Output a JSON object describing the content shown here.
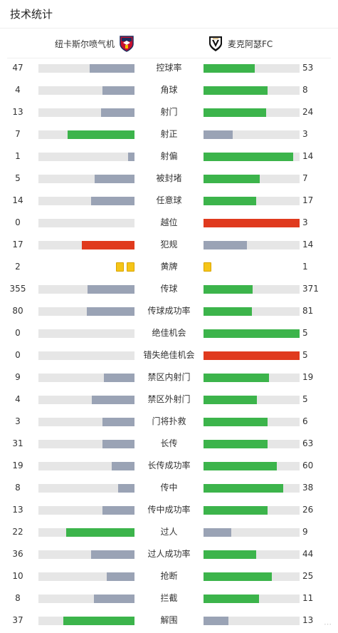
{
  "header": {
    "title": "技术统计"
  },
  "teams": {
    "home": {
      "name": "纽卡斯尔喷气机",
      "logo_icon": "newcastle-jets-crest-icon"
    },
    "away": {
      "name": "麦克阿瑟FC",
      "logo_icon": "macarthur-fc-crest-icon"
    }
  },
  "colors": {
    "leader": "#3cb44b",
    "neutral": "#9aa3b5",
    "foul_leader": "#e03a1e",
    "track": "#e6e6e6",
    "yellow_card": "#f5c518"
  },
  "stats": [
    {
      "label": "控球率",
      "home": "47",
      "away": "53"
    },
    {
      "label": "角球",
      "home": "4",
      "away": "8"
    },
    {
      "label": "射门",
      "home": "13",
      "away": "24"
    },
    {
      "label": "射正",
      "home": "7",
      "away": "3"
    },
    {
      "label": "射偏",
      "home": "1",
      "away": "14"
    },
    {
      "label": "被封堵",
      "home": "5",
      "away": "7"
    },
    {
      "label": "任意球",
      "home": "14",
      "away": "17"
    },
    {
      "label": "越位",
      "home": "0",
      "away": "3",
      "red": true
    },
    {
      "label": "犯规",
      "home": "17",
      "away": "14",
      "red": true
    },
    {
      "label": "黄牌",
      "home": "2",
      "away": "1",
      "cards": true
    },
    {
      "label": "传球",
      "home": "355",
      "away": "371"
    },
    {
      "label": "传球成功率",
      "home": "80",
      "away": "81"
    },
    {
      "label": "绝佳机会",
      "home": "0",
      "away": "5"
    },
    {
      "label": "错失绝佳机会",
      "home": "0",
      "away": "5",
      "red": true
    },
    {
      "label": "禁区内射门",
      "home": "9",
      "away": "19"
    },
    {
      "label": "禁区外射门",
      "home": "4",
      "away": "5"
    },
    {
      "label": "门将扑救",
      "home": "3",
      "away": "6"
    },
    {
      "label": "长传",
      "home": "31",
      "away": "63"
    },
    {
      "label": "长传成功率",
      "home": "19",
      "away": "60"
    },
    {
      "label": "传中",
      "home": "8",
      "away": "38"
    },
    {
      "label": "传中成功率",
      "home": "13",
      "away": "26"
    },
    {
      "label": "过人",
      "home": "22",
      "away": "9"
    },
    {
      "label": "过人成功率",
      "home": "36",
      "away": "44"
    },
    {
      "label": "抢断",
      "home": "10",
      "away": "25"
    },
    {
      "label": "拦截",
      "home": "8",
      "away": "11"
    },
    {
      "label": "解围",
      "home": "37",
      "away": "13"
    }
  ]
}
